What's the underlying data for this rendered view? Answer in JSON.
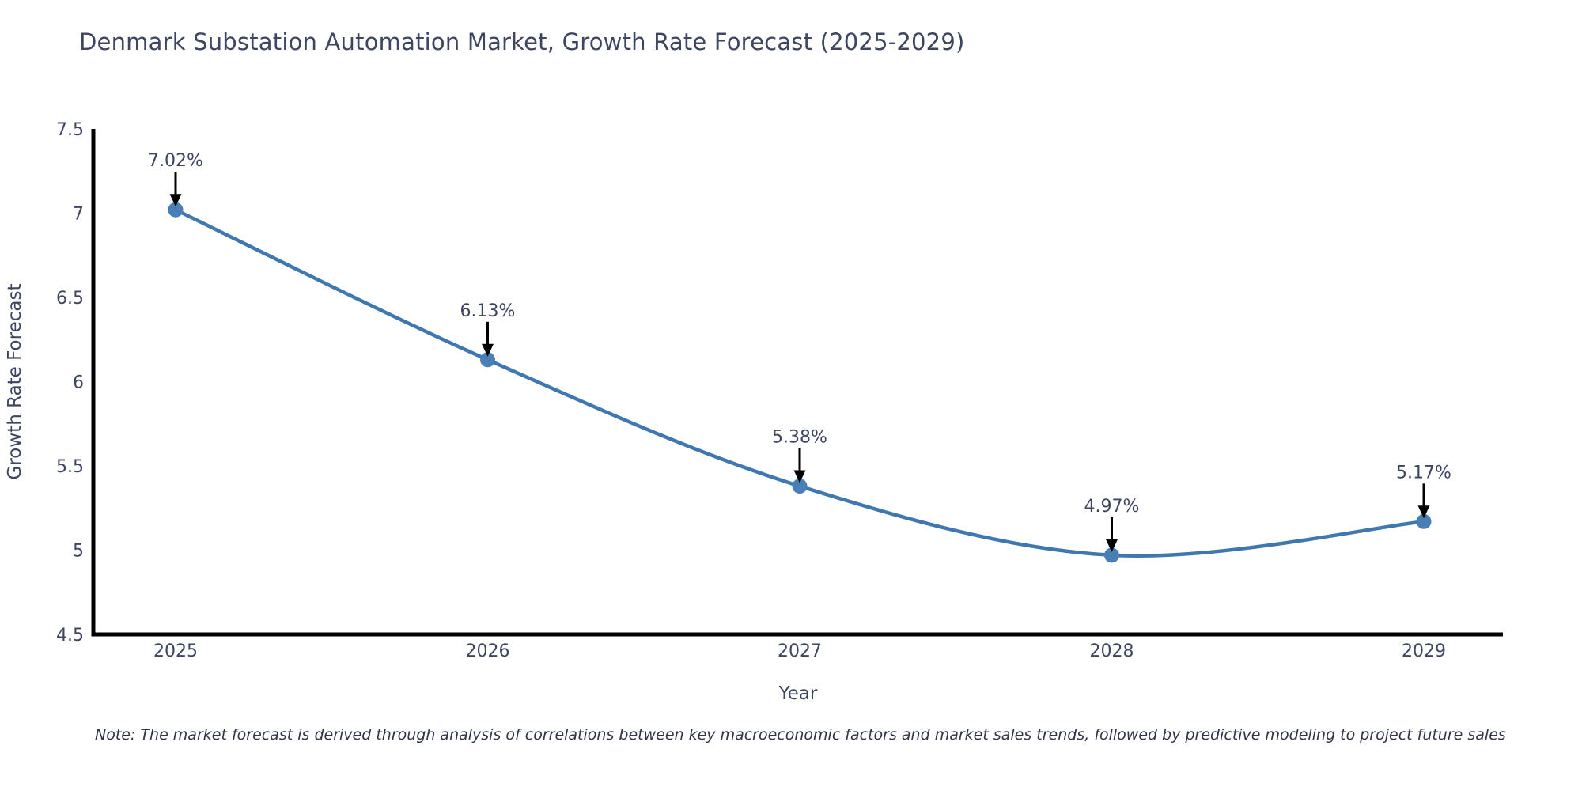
{
  "chart_data": {
    "type": "line",
    "title": "Denmark Substation Automation Market, Growth Rate Forecast (2025-2029)",
    "xlabel": "Year",
    "ylabel": "Growth Rate Forecast",
    "categories": [
      "2025",
      "2026",
      "2027",
      "2028",
      "2029"
    ],
    "values": [
      7.02,
      6.13,
      5.38,
      4.97,
      5.17
    ],
    "point_labels": [
      "7.02%",
      "6.13%",
      "5.38%",
      "4.97%",
      "5.17%"
    ],
    "ylim": [
      4.5,
      7.5
    ],
    "ytick_values": [
      4.5,
      5,
      5.5,
      6,
      6.5,
      7,
      7.5
    ],
    "ytick_labels": [
      "4.5",
      "5",
      "5.5",
      "6",
      "6.5",
      "7",
      "7.5"
    ],
    "grid": false,
    "legend_position": "none",
    "line_shape": "spline",
    "colors": {
      "line": "#3f78b0",
      "marker": "#4a7fb5",
      "axis_line": "#000000",
      "arrow": "#000000",
      "text": "#3d4560",
      "background": "#ffffff"
    }
  },
  "note": "Note: The market forecast is derived through analysis of correlations between key macroeconomic factors and market sales trends, followed by predictive modeling to project future sales"
}
